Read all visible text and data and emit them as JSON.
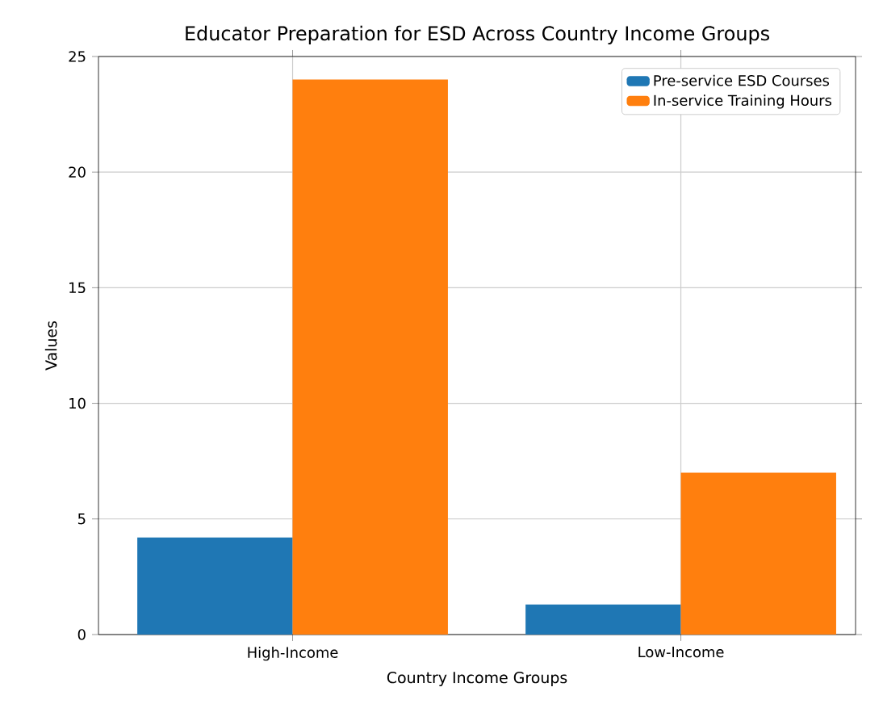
{
  "chart_data": {
    "type": "bar",
    "title": "Educator Preparation for ESD Across Country Income Groups",
    "xlabel": "Country Income Groups",
    "ylabel": "Values",
    "categories": [
      "High-Income",
      "Low-Income"
    ],
    "series": [
      {
        "name": "Pre-service ESD Courses",
        "color": "#1f77b4",
        "values": [
          4.2,
          1.3
        ]
      },
      {
        "name": "In-service Training Hours",
        "color": "#ff7f0e",
        "values": [
          24,
          7
        ]
      }
    ],
    "ylim": [
      0,
      25
    ],
    "yticks": [
      0,
      5,
      10,
      15,
      20,
      25
    ],
    "grid": true,
    "legend": "top right"
  }
}
